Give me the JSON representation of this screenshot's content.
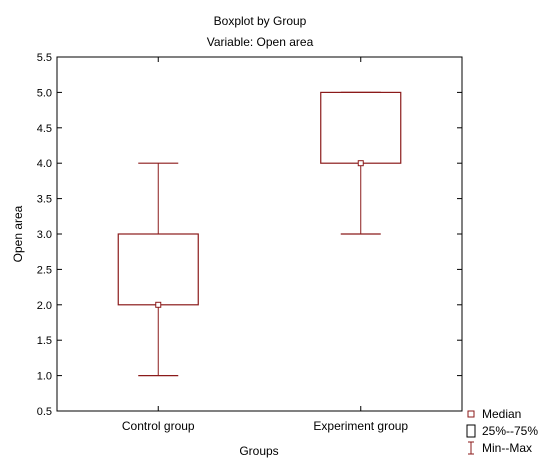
{
  "chart_data": {
    "type": "boxplot",
    "title": "Boxplot by Group",
    "subtitle": "Variable: Open area",
    "xlabel": "Groups",
    "ylabel": "Open area",
    "ylim": [
      0.5,
      5.5
    ],
    "yticks": [
      "0.5",
      "1.0",
      "1.5",
      "2.0",
      "2.5",
      "3.0",
      "3.5",
      "4.0",
      "4.5",
      "5.0",
      "5.5"
    ],
    "categories": [
      "Control group",
      "Experiment group"
    ],
    "boxes": [
      {
        "category": "Control group",
        "min": 1.0,
        "q1": 2.0,
        "median": 2.0,
        "q3": 3.0,
        "max": 4.0
      },
      {
        "category": "Experiment group",
        "min": 3.0,
        "q1": 4.0,
        "median": 4.0,
        "q3": 5.0,
        "max": 5.0
      }
    ],
    "legend": {
      "placement": "bottom-right",
      "entries": [
        "Median",
        "25%--75%",
        "Min--Max"
      ]
    },
    "grid": false,
    "color": "#8b1a1a"
  }
}
